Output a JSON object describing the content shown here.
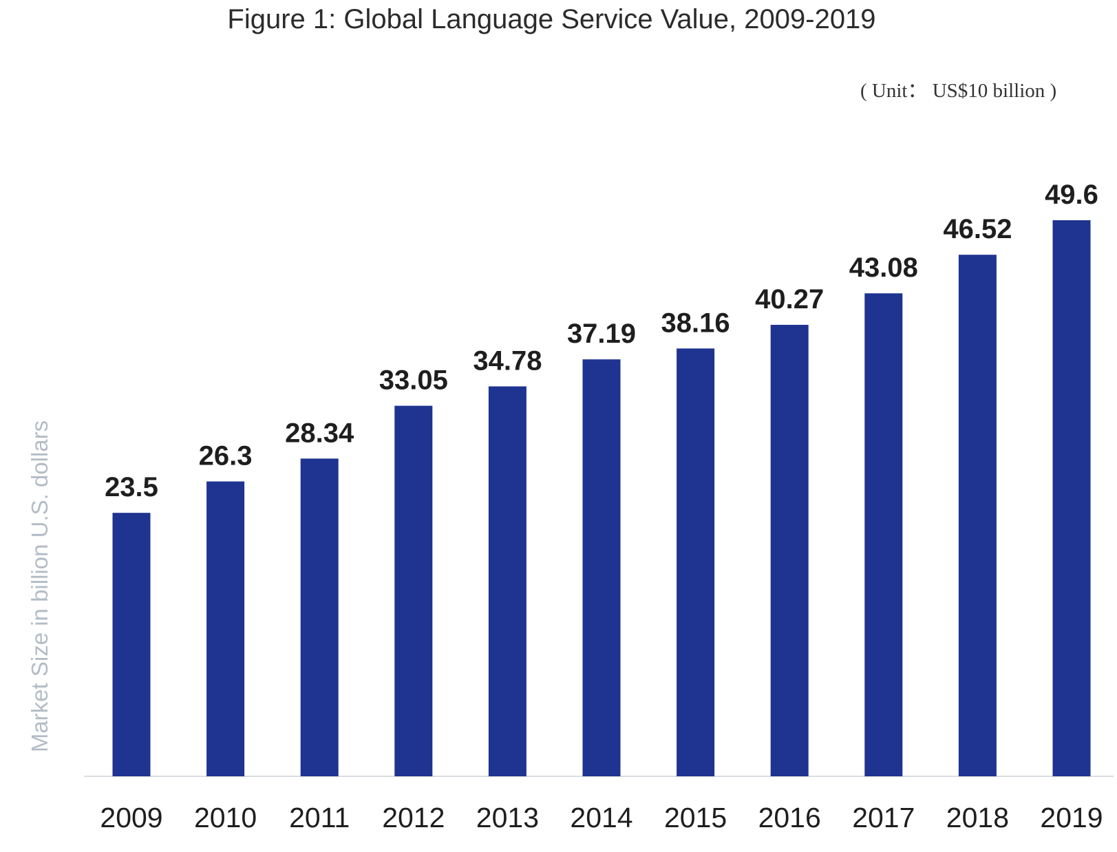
{
  "chart_data": {
    "type": "bar",
    "title": "Figure 1: Global Language Service Value, 2009-2019",
    "unit_note": "( Unit： US$10 billion )",
    "ylabel": "Market Size in billion U.S. dollars",
    "xlabel": "",
    "categories": [
      "2009",
      "2010",
      "2011",
      "2012",
      "2013",
      "2014",
      "2015",
      "2016",
      "2017",
      "2018",
      "2019"
    ],
    "values": [
      23.5,
      26.3,
      28.34,
      33.05,
      34.78,
      37.19,
      38.16,
      40.27,
      43.08,
      46.52,
      49.6
    ],
    "value_labels": [
      "23.5",
      "26.3",
      "28.34",
      "33.05",
      "34.78",
      "37.19",
      "38.16",
      "40.27",
      "43.08",
      "46.52",
      "49.6"
    ],
    "bar_color": "#1f3391",
    "ylim": [
      0,
      53
    ],
    "grid": false,
    "legend": "none"
  }
}
